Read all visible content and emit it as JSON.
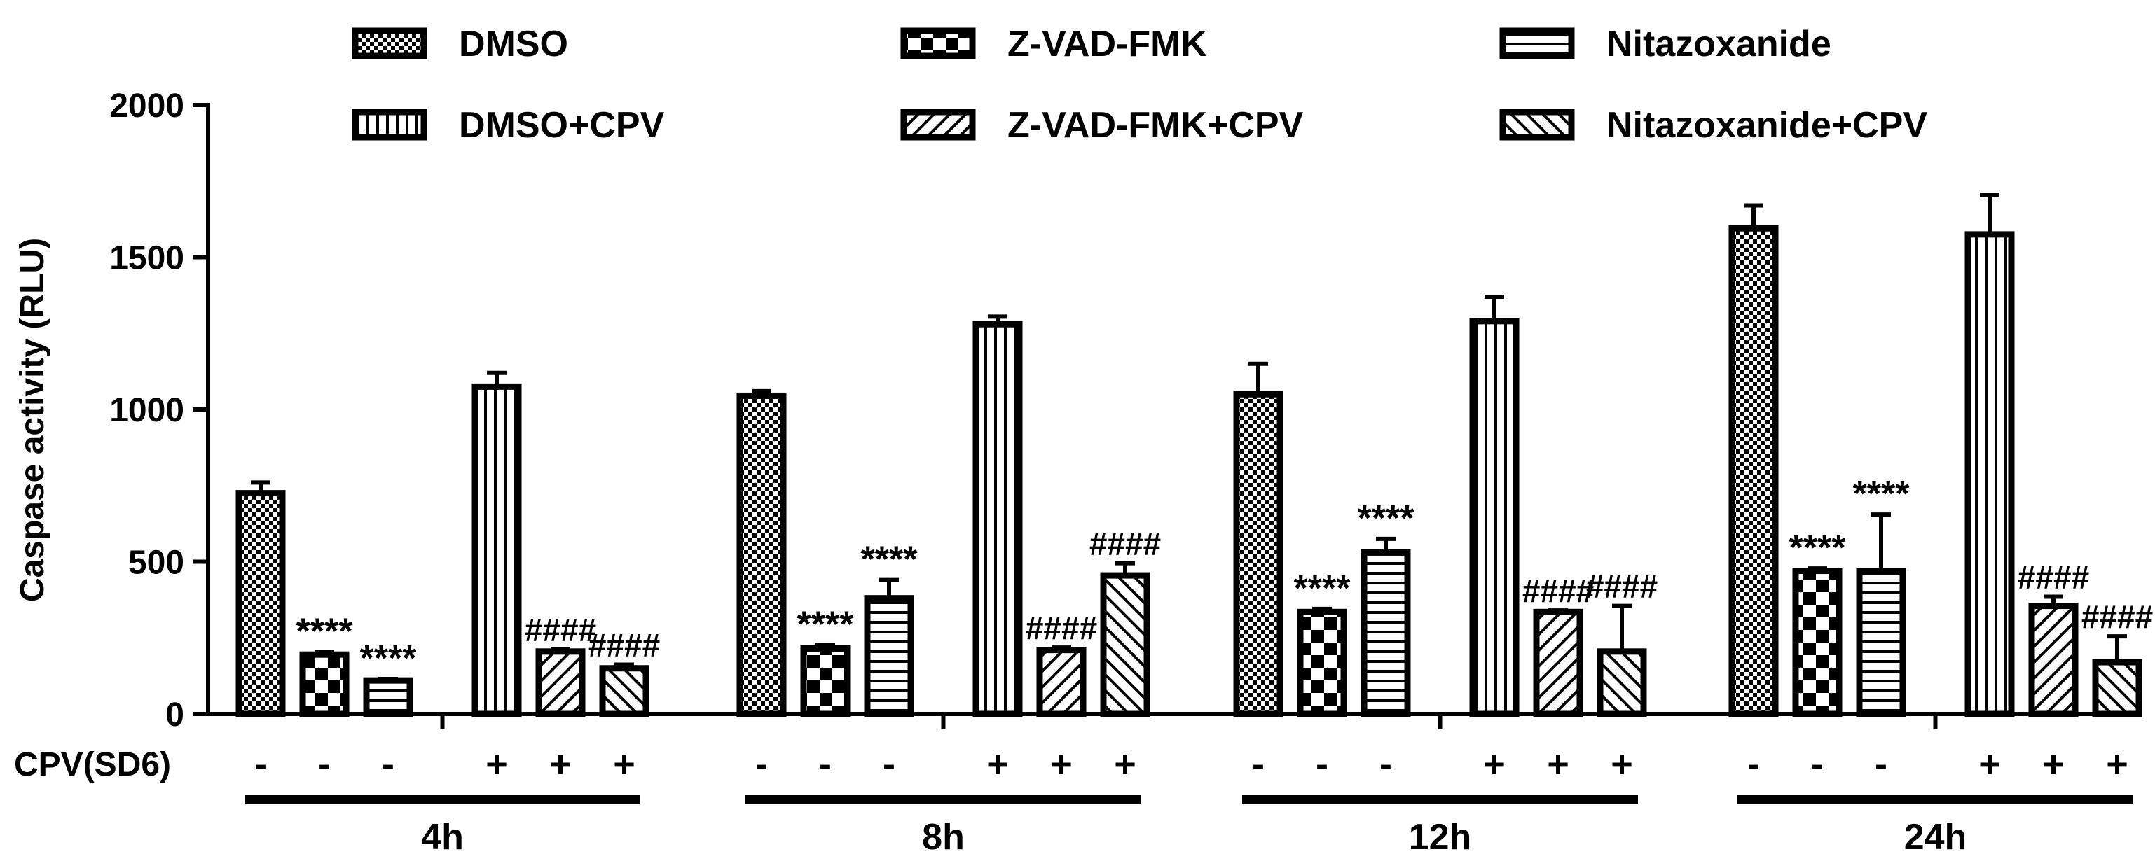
{
  "chart_data": {
    "type": "bar",
    "title": "",
    "xlabel": "",
    "ylabel": "Caspase activity (RLU)",
    "ylim": [
      0,
      2000
    ],
    "yticks": [
      0,
      500,
      1000,
      1500,
      2000
    ],
    "grid": false,
    "legend_position": "top",
    "cpv_row_label": "CPV(SD6)",
    "groups": [
      "4h",
      "8h",
      "12h",
      "24h"
    ],
    "series": [
      {
        "name": "DMSO",
        "pattern": "checker-fine",
        "cpv": "-",
        "values": [
          725,
          1045,
          1050,
          1595
        ],
        "errors": [
          35,
          15,
          100,
          75
        ],
        "annotations": [
          "",
          "",
          "",
          ""
        ]
      },
      {
        "name": "Z-VAD-FMK",
        "pattern": "checker-coarse",
        "cpv": "-",
        "values": [
          195,
          215,
          335,
          470
        ],
        "errors": [
          8,
          12,
          10,
          8
        ],
        "annotations": [
          "****",
          "****",
          "****",
          "****"
        ]
      },
      {
        "name": "Nitazoxanide",
        "pattern": "horizontal-lines",
        "cpv": "-",
        "values": [
          110,
          380,
          530,
          470
        ],
        "errors": [
          5,
          60,
          45,
          185
        ],
        "annotations": [
          "****",
          "****",
          "****",
          "****"
        ]
      },
      {
        "name": "DMSO+CPV",
        "pattern": "vertical-lines",
        "cpv": "+",
        "values": [
          1075,
          1280,
          1290,
          1575
        ],
        "errors": [
          45,
          25,
          80,
          130
        ],
        "annotations": [
          "",
          "",
          "",
          ""
        ]
      },
      {
        "name": "Z-VAD-FMK+CPV",
        "pattern": "diagonal-right",
        "cpv": "+",
        "values": [
          205,
          210,
          335,
          355
        ],
        "errors": [
          8,
          8,
          5,
          30
        ],
        "annotations": [
          "####",
          "####",
          "####",
          "####"
        ]
      },
      {
        "name": "Nitazoxanide+CPV",
        "pattern": "diagonal-left",
        "cpv": "+",
        "values": [
          150,
          455,
          205,
          170
        ],
        "errors": [
          12,
          40,
          150,
          85
        ],
        "annotations": [
          "####",
          "####",
          "####",
          "####"
        ]
      }
    ],
    "colors": {
      "fill": "#ffffff",
      "stroke": "#000000"
    }
  }
}
